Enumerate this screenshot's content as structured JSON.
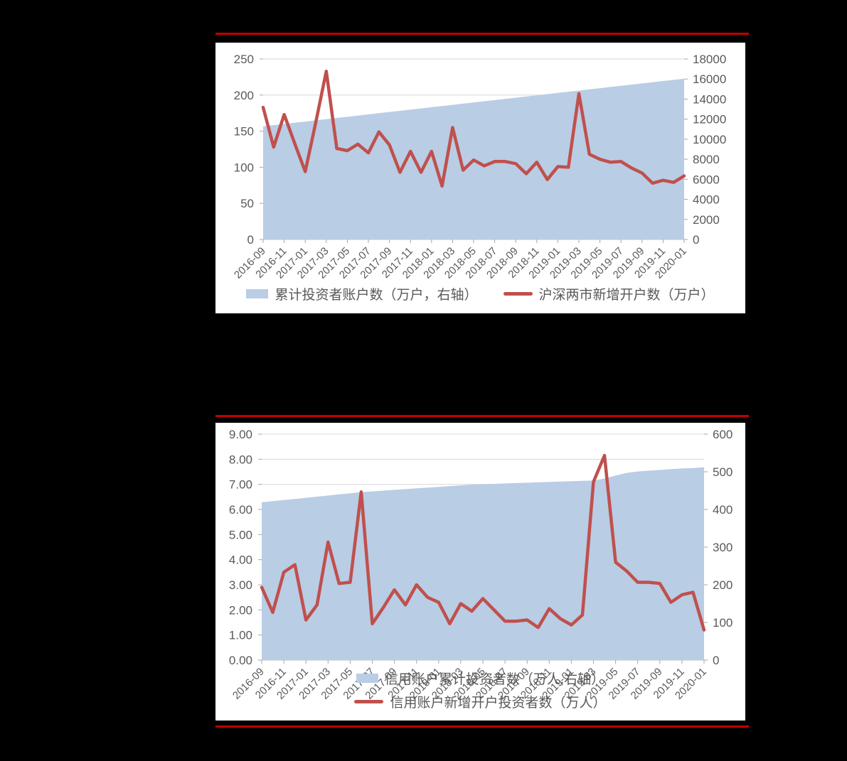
{
  "page": {
    "background": "#000000",
    "panel_background": "#ffffff",
    "accent_rule_color": "#c00000",
    "gridline_color": "#d8d8d8",
    "axis_text_color": "#595959"
  },
  "charts": [
    {
      "title": "",
      "legend": {
        "area_label": "累计投资者账户数（万户，右轴）",
        "line_label": "沪深两市新增开户数（万户）"
      },
      "chart_data": {
        "type": "area",
        "subtype": "combo-area-right-axis-plus-line-left-axis",
        "grid": true,
        "legend_position": "bottom-center",
        "x": [
          "2016-09",
          "2016-10",
          "2016-11",
          "2016-12",
          "2017-01",
          "2017-02",
          "2017-03",
          "2017-04",
          "2017-05",
          "2017-06",
          "2017-07",
          "2017-08",
          "2017-09",
          "2017-10",
          "2017-11",
          "2017-12",
          "2018-01",
          "2018-02",
          "2018-03",
          "2018-04",
          "2018-05",
          "2018-06",
          "2018-07",
          "2018-08",
          "2018-09",
          "2018-10",
          "2018-11",
          "2018-12",
          "2019-01",
          "2019-02",
          "2019-03",
          "2019-04",
          "2019-05",
          "2019-06",
          "2019-07",
          "2019-08",
          "2019-09",
          "2019-10",
          "2019-11",
          "2019-12",
          "2020-01"
        ],
        "x_tick_labels": [
          "2016-09",
          "2016-11",
          "2017-01",
          "2017-03",
          "2017-05",
          "2017-07",
          "2017-09",
          "2017-11",
          "2018-01",
          "2018-03",
          "2018-05",
          "2018-07",
          "2018-09",
          "2018-11",
          "2019-01",
          "2019-03",
          "2019-05",
          "2019-07",
          "2019-09",
          "2019-11",
          "2020-01"
        ],
        "left_axis": {
          "min": 0,
          "max": 250,
          "step": 50,
          "labels": [
            "250",
            "200",
            "150",
            "100",
            "50",
            "0"
          ]
        },
        "right_axis": {
          "min": 0,
          "max": 18000,
          "step": 2000,
          "labels": [
            "18000",
            "16000",
            "14000",
            "12000",
            "10000",
            "8000",
            "6000",
            "4000",
            "2000",
            "0"
          ]
        },
        "series": [
          {
            "name": "累计投资者账户数（万户，右轴）",
            "type": "area",
            "axis": "right",
            "color": "#b9cde5",
            "values": [
              11280,
              11400,
              11520,
              11640,
              11760,
              11875,
              11995,
              12115,
              12230,
              12350,
              12470,
              12590,
              12710,
              12830,
              12945,
              13065,
              13185,
              13300,
              13420,
              13540,
              13660,
              13780,
              13900,
              14015,
              14135,
              14255,
              14375,
              14495,
              14610,
              14730,
              14850,
              14970,
              15090,
              15210,
              15325,
              15445,
              15565,
              15685,
              15800,
              15920,
              16040
            ]
          },
          {
            "name": "沪深两市新增开户数（万户）",
            "type": "line",
            "axis": "left",
            "color": "#c0504d",
            "values": [
              183,
              128,
              173,
              133,
              94,
              162,
              233,
              126,
              123,
              132,
              120,
              149,
              131,
              93,
              122,
              93,
              122,
              74,
              155,
              96,
              110,
              102,
              108,
              108,
              105,
              91,
              107,
              83,
              101,
              100,
              202,
              118,
              111,
              107,
              108,
              99,
              92,
              78,
              82,
              79,
              88
            ]
          }
        ]
      }
    },
    {
      "title": "",
      "legend": {
        "area_label": "信用账户累计投资者数（万人,右轴）",
        "line_label": "信用账户新增开户投资者数（万人）"
      },
      "chart_data": {
        "type": "area",
        "subtype": "combo-area-right-axis-plus-line-left-axis",
        "grid": true,
        "legend_position": "bottom-center-overlapping-x-labels",
        "x": [
          "2016-09",
          "2016-10",
          "2016-11",
          "2016-12",
          "2017-01",
          "2017-02",
          "2017-03",
          "2017-04",
          "2017-05",
          "2017-06",
          "2017-07",
          "2017-08",
          "2017-09",
          "2017-10",
          "2017-11",
          "2017-12",
          "2018-01",
          "2018-02",
          "2018-03",
          "2018-04",
          "2018-05",
          "2018-06",
          "2018-07",
          "2018-08",
          "2018-09",
          "2018-10",
          "2018-11",
          "2018-12",
          "2019-01",
          "2019-02",
          "2019-03",
          "2019-04",
          "2019-05",
          "2019-06",
          "2019-07",
          "2019-08",
          "2019-09",
          "2019-10",
          "2019-11",
          "2019-12",
          "2020-01"
        ],
        "x_tick_labels": [
          "2016-09",
          "2016-11",
          "2017-01",
          "2017-03",
          "2017-05",
          "2017-07",
          "2017-09",
          "2017-11",
          "2018-01",
          "2018-03",
          "2018-05",
          "2018-07",
          "2018-09",
          "2018-11",
          "2019-01",
          "2019-03",
          "2019-05",
          "2019-07",
          "2019-09",
          "2019-11",
          "2020-01"
        ],
        "left_axis": {
          "min": 0,
          "max": 9,
          "step": 1,
          "labels": [
            "9.00",
            "8.00",
            "7.00",
            "6.00",
            "5.00",
            "4.00",
            "3.00",
            "2.00",
            "1.00",
            "0.00"
          ]
        },
        "right_axis": {
          "min": 0,
          "max": 600,
          "step": 100,
          "labels": [
            "600",
            "500",
            "400",
            "300",
            "200",
            "100",
            "0"
          ]
        },
        "series": [
          {
            "name": "信用账户累计投资者数（万人,右轴）",
            "type": "area",
            "axis": "right",
            "color": "#b9cde5",
            "values": [
              419,
              422,
              425,
              428,
              431,
              434,
              437,
              440,
              443,
              446,
              448,
              450,
              452,
              454,
              456,
              458,
              460,
              462,
              464,
              466,
              467,
              468,
              469,
              470,
              471,
              472,
              473,
              474,
              475,
              476,
              477,
              482,
              490,
              497,
              501,
              503,
              505,
              507,
              509,
              510,
              512
            ]
          },
          {
            "name": "信用账户新增开户投资者数（万人）",
            "type": "line",
            "axis": "left",
            "color": "#c0504d",
            "values": [
              2.9,
              1.9,
              3.5,
              3.8,
              1.6,
              2.2,
              4.7,
              3.05,
              3.1,
              6.7,
              1.45,
              2.1,
              2.8,
              2.2,
              3.0,
              2.5,
              2.3,
              1.45,
              2.25,
              1.95,
              2.45,
              2.0,
              1.55,
              1.55,
              1.6,
              1.3,
              2.05,
              1.65,
              1.4,
              1.8,
              7.1,
              8.15,
              3.9,
              3.55,
              3.1,
              3.1,
              3.05,
              2.3,
              2.6,
              2.7,
              1.2
            ]
          }
        ]
      }
    }
  ]
}
